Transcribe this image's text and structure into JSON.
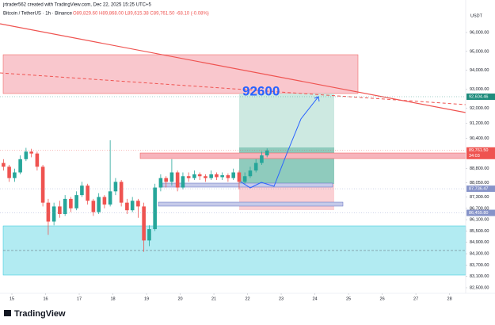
{
  "header": {
    "credit": "jrtrader562 created with TradingView.com, Dec 22, 2025 15:25 UTC+5",
    "symbol": "Bitcoin / TetherUS · 1h · Binance",
    "ohlc": "O89,829.60 H89,868.00 L89,615.38 C89,761.50 -68.10 (-0.08%)"
  },
  "chart_data": {
    "type": "candlestick",
    "currency": "USDT",
    "xlim": [
      14.647,
      28.48
    ],
    "xticks": [
      15,
      16,
      17,
      18,
      19,
      20,
      21,
      22,
      23,
      24,
      25,
      26,
      27,
      28
    ],
    "ylim": [
      82206,
      97216
    ],
    "yticks": [
      {
        "value": 96000,
        "label": "96,000.00"
      },
      {
        "value": 95000,
        "label": "95,000.00"
      },
      {
        "value": 94000,
        "label": "94,000.00"
      },
      {
        "value": 93000,
        "label": "93,000.00"
      },
      {
        "value": 92000,
        "label": "92,000.00"
      },
      {
        "value": 91200,
        "label": "91,200.00"
      },
      {
        "value": 90400,
        "label": "90,400.00"
      },
      {
        "value": 88800,
        "label": "88,800.00"
      },
      {
        "value": 88050,
        "label": "88,050.00"
      },
      {
        "value": 87300,
        "label": "87,300.00"
      },
      {
        "value": 86700,
        "label": "86,700.00"
      },
      {
        "value": 86100,
        "label": "86,100.00"
      },
      {
        "value": 85500,
        "label": "85,500.00"
      },
      {
        "value": 84900,
        "label": "84,900.00"
      },
      {
        "value": 84300,
        "label": "84,300.00"
      },
      {
        "value": 83700,
        "label": "83,700.00"
      },
      {
        "value": 83100,
        "label": "83,100.00"
      },
      {
        "value": 82500,
        "label": "82,500.00"
      }
    ],
    "grid": false,
    "price_tags": [
      {
        "value": 92604.46,
        "label": "92,604.46",
        "color": "#1e8c7c"
      },
      {
        "value": 89761.5,
        "label": "89,761.50",
        "color": "#ef5350"
      },
      {
        "value": 87736.47,
        "label": "87,736.47",
        "color": "#8794c9"
      },
      {
        "value": 86459.8,
        "label": "86,459.80",
        "color": "#8794c9"
      }
    ],
    "countdown": "34:03",
    "annotation": "92600",
    "up_color": "#26a69a",
    "down_color": "#ef5350",
    "x": [
      14.75,
      14.92,
      15.08,
      15.25,
      15.42,
      15.58,
      15.75,
      15.92,
      16.08,
      16.25,
      16.42,
      16.58,
      16.75,
      16.92,
      17.08,
      17.25,
      17.42,
      17.58,
      17.75,
      17.92,
      18.08,
      18.25,
      18.42,
      18.58,
      18.75,
      18.92,
      19.08,
      19.25,
      19.42,
      19.58,
      19.75,
      19.92,
      20.08,
      20.25,
      20.42,
      20.58,
      20.75,
      20.92,
      21.08,
      21.25,
      21.42,
      21.58,
      21.75,
      21.92,
      22.08,
      22.25,
      22.42,
      22.58
    ],
    "open": [
      89100,
      88900,
      88300,
      88600,
      89300,
      89700,
      89600,
      88900,
      87000,
      86000,
      86800,
      86400,
      87200,
      86700,
      87400,
      87900,
      87100,
      86500,
      87300,
      86900,
      87600,
      88100,
      87000,
      86600,
      87100,
      86800,
      85000,
      85600,
      87800,
      88300,
      88100,
      88600,
      87800,
      88400,
      88300,
      88500,
      88400,
      88300,
      88500,
      88350,
      88450,
      88300,
      88600,
      88100,
      88400,
      88700,
      89100,
      89500
    ],
    "high": [
      89300,
      89000,
      88800,
      89500,
      89900,
      89850,
      89700,
      89000,
      87200,
      87000,
      87100,
      87400,
      87300,
      87600,
      88100,
      88000,
      87200,
      87500,
      87400,
      90300,
      88300,
      88200,
      87200,
      87300,
      87200,
      87000,
      85800,
      88000,
      88500,
      88400,
      89300,
      88700,
      88600,
      88600,
      88700,
      88600,
      88500,
      88700,
      88600,
      88600,
      88550,
      88800,
      88700,
      88600,
      88900,
      89300,
      89700,
      89868
    ],
    "low": [
      88700,
      88100,
      88100,
      88500,
      89200,
      89400,
      88700,
      86800,
      85300,
      85800,
      86200,
      86300,
      86500,
      86600,
      87300,
      86900,
      86300,
      86400,
      86700,
      86800,
      87400,
      86800,
      86400,
      86500,
      86200,
      84400,
      84700,
      85500,
      87600,
      87800,
      87900,
      87600,
      87700,
      88100,
      88200,
      88200,
      88100,
      88200,
      88200,
      88200,
      88100,
      88200,
      87700,
      88000,
      88300,
      88600,
      89000,
      89400
    ],
    "close": [
      88900,
      88300,
      88600,
      89300,
      89700,
      89600,
      88900,
      87000,
      86000,
      86800,
      86400,
      87200,
      86700,
      87400,
      87900,
      87100,
      86500,
      87300,
      86900,
      87600,
      88100,
      87000,
      86600,
      87100,
      86800,
      85000,
      85600,
      87800,
      88300,
      88100,
      88600,
      87800,
      88400,
      88300,
      88500,
      88400,
      88300,
      88500,
      88350,
      88450,
      88300,
      88600,
      88100,
      88400,
      88700,
      89100,
      89500,
      89761.5
    ]
  },
  "footer": {
    "logo": "TradingView"
  }
}
